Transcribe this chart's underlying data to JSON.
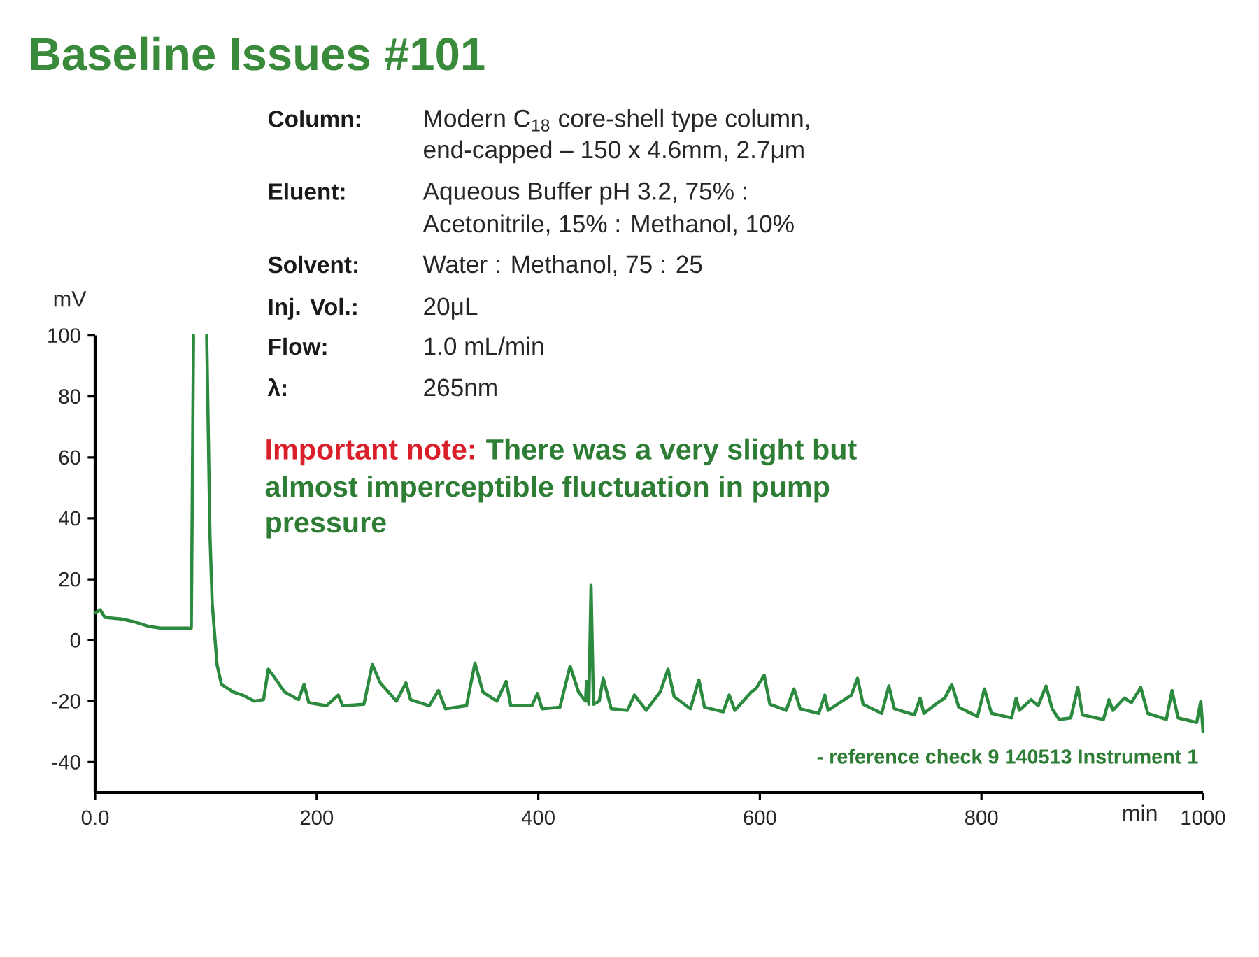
{
  "chart_data": {
    "type": "line",
    "title": "Baseline Issues #101",
    "xlabel": "min",
    "ylabel": "mV",
    "annotations": [
      "Column:",
      "Modern C$_{18}$ core-shell type column,",
      "end-capped – 150 x 4.6mm, 2.7μm",
      "Eluent:",
      "Aqueous Buffer pH 3.2, 75% :",
      "Acetonitrile, 15% : Methanol, 10%",
      "Solvent:",
      "Water : Methanol, 75 : 25",
      "Inj. Vol.:",
      "20μL",
      "Flow:",
      "1.0 mL/min",
      "λ:",
      "265nm",
      "Important note:",
      "There was a very slight but",
      "almost imperceptible fluctuation in pump",
      "pressure",
      "- reference check 9 140513 Instrument 1"
    ],
    "x": [
      0,
      4.6,
      8.8,
      23.6,
      36,
      49,
      59,
      74,
      86.8,
      88.8,
      95,
      100.7,
      103.6,
      105.7,
      110,
      114,
      124.7,
      133,
      143.6,
      152,
      156.3,
      160.5,
      171,
      183.6,
      188.6,
      192.9,
      208.8,
      219.4,
      223.6,
      242.6,
      250.2,
      257.4,
      272,
      280.5,
      284.7,
      301.6,
      309.9,
      316.2,
      335.2,
      342.8,
      350,
      362.6,
      371,
      375.2,
      394.2,
      399.2,
      403.4,
      419.5,
      428.7,
      436.3,
      442.6,
      443.5,
      445.6,
      447.6,
      449.8,
      455,
      458.6,
      465.8,
      480.5,
      486.8,
      497.4,
      510,
      517.1,
      522.6,
      537.3,
      544.9,
      550,
      566.9,
      572.3,
      577.4,
      592.2,
      596.3,
      603.9,
      609,
      623.7,
      630.8,
      636.4,
      653.2,
      658.6,
      661.6,
      676.3,
      682.6,
      688.1,
      693.2,
      710,
      716.4,
      721.4,
      739.5,
      744.6,
      748,
      760.6,
      766.9,
      773.2,
      779.5,
      796.4,
      802.7,
      809,
      827.2,
      831.3,
      834.2,
      844.8,
      851.2,
      858.3,
      863.8,
      870.1,
      880.6,
      887,
      891.2,
      910.1,
      915.1,
      918.5,
      929,
      935.3,
      943.8,
      950.1,
      966.9,
      972,
      977.5,
      994.3,
      998,
      1000
    ],
    "values": [
      9,
      10,
      7.5,
      7,
      6,
      4.5,
      4,
      4,
      4,
      100,
      null,
      100,
      35,
      12,
      -8,
      -14.5,
      -17,
      -18,
      -20,
      -19.5,
      -9.5,
      -11.5,
      -17,
      -19.5,
      -14.5,
      -20.5,
      -21.5,
      -18,
      -21.5,
      -21,
      -8,
      -14,
      -20,
      -14,
      -19.5,
      -21.5,
      -16.5,
      -22.5,
      -21.5,
      -7.5,
      -17,
      -20,
      -13.5,
      -21.5,
      -21.5,
      -17.5,
      -22.5,
      -22,
      -8.5,
      -17,
      -20,
      -13.5,
      -21,
      18,
      -21,
      -20,
      -12.5,
      -22.5,
      -23,
      -18,
      -23,
      -17,
      -9.5,
      -18.5,
      -22.5,
      -13,
      -22,
      -23.5,
      -18,
      -23,
      -17,
      -16,
      -11.5,
      -21,
      -23,
      -16,
      -22.5,
      -24,
      -18,
      -23,
      -19.5,
      -18,
      -12.5,
      -21,
      -24,
      -15,
      -22.5,
      -24.5,
      -19,
      -24,
      -20.5,
      -19,
      -14.5,
      -22,
      -25,
      -16,
      -24,
      -25.5,
      -19,
      -23,
      -19.5,
      -21.5,
      -15,
      -22.5,
      -26,
      -25.5,
      -15.5,
      -24.5,
      -26,
      -19.5,
      -23,
      -19,
      -20.5,
      -15.5,
      -24,
      -26,
      -16.5,
      -25.5,
      -27,
      -20,
      -30
    ],
    "color": "#2b8a3e",
    "xlim": [
      0,
      1000
    ],
    "ylim": [
      -50,
      100
    ],
    "xticks": [
      {
        "value": 0,
        "label": "0.0"
      },
      200,
      400,
      600,
      800,
      1000
    ],
    "yticks": [
      -40,
      -20,
      0,
      20,
      40,
      60,
      80,
      100
    ]
  }
}
